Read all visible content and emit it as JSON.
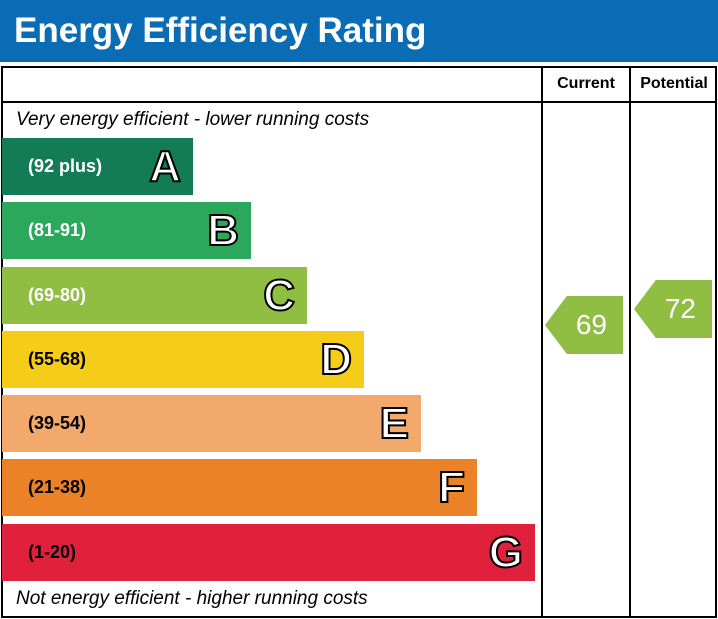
{
  "header": {
    "title": "Energy Efficiency Rating"
  },
  "chart_data": {
    "type": "table",
    "title": "Energy Efficiency Rating",
    "columns": [
      "Current",
      "Potential"
    ],
    "top_note": "Very energy efficient - lower running costs",
    "bottom_note": "Not energy efficient - higher running costs",
    "bands": [
      {
        "letter": "A",
        "range": "(92 plus)",
        "color": "#137c56"
      },
      {
        "letter": "B",
        "range": "(81-91)",
        "color": "#2ca85c"
      },
      {
        "letter": "C",
        "range": "(69-80)",
        "color": "#8fbe43"
      },
      {
        "letter": "D",
        "range": "(55-68)",
        "color": "#f5cc18"
      },
      {
        "letter": "E",
        "range": "(39-54)",
        "color": "#f2a96b"
      },
      {
        "letter": "F",
        "range": "(21-38)",
        "color": "#ec8227"
      },
      {
        "letter": "G",
        "range": "(1-20)",
        "color": "#e0213c"
      }
    ],
    "current": {
      "value": "69",
      "band": "C",
      "color": "#8fbe43"
    },
    "potential": {
      "value": "72",
      "band": "C",
      "color": "#8fbe43"
    }
  }
}
